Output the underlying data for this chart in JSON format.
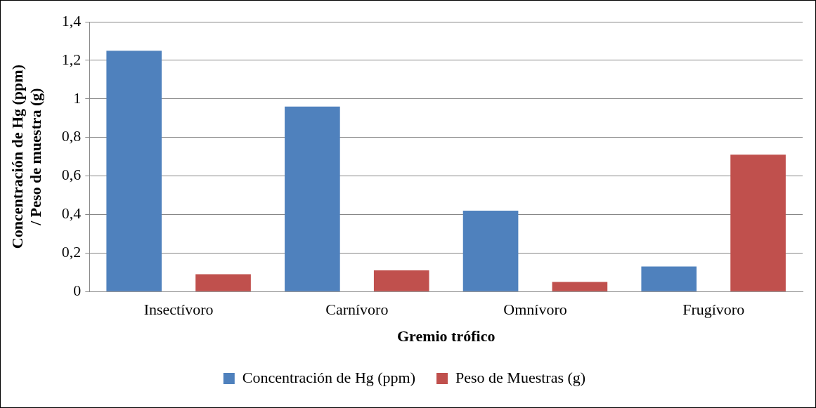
{
  "chart_data": {
    "type": "bar",
    "xlabel": "Gremio trófico",
    "ylabel": "Concentración de Hg (ppm) / Peso de muestra (g)",
    "categories": [
      "Insectívoro",
      "Carnívoro",
      "Omnívoro",
      "Frugívoro"
    ],
    "series": [
      {
        "name": "Concentración de Hg (ppm)",
        "color": "#4f81bd",
        "values": [
          1.25,
          0.96,
          0.42,
          0.13
        ]
      },
      {
        "name": "Peso de Muestras (g)",
        "color": "#c0504d",
        "values": [
          0.09,
          0.11,
          0.05,
          0.71
        ]
      }
    ],
    "ylim": [
      0,
      1.4
    ],
    "yticks": [
      {
        "value": 0,
        "label": "0"
      },
      {
        "value": 0.2,
        "label": "0,2"
      },
      {
        "value": 0.4,
        "label": "0,4"
      },
      {
        "value": 0.6,
        "label": "0,6"
      },
      {
        "value": 0.8,
        "label": "0,8"
      },
      {
        "value": 1,
        "label": "1"
      },
      {
        "value": 1.2,
        "label": "1,2"
      },
      {
        "value": 1.4,
        "label": "1,4"
      }
    ],
    "grid": "y",
    "legend": "bottom"
  }
}
